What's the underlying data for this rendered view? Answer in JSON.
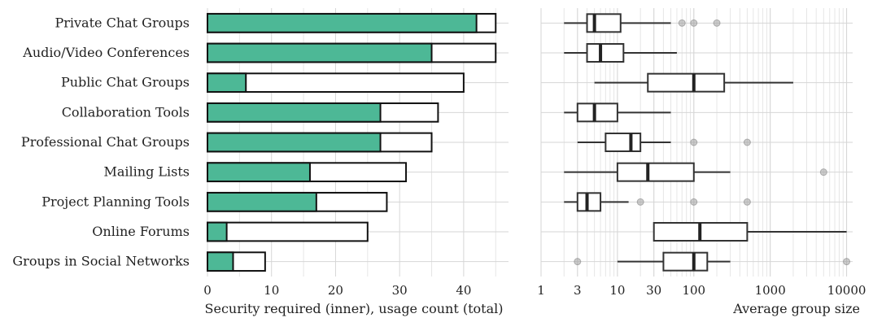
{
  "chart_data": [
    {
      "type": "bar",
      "categories": [
        "Private Chat Groups",
        "Audio/Video Conferences",
        "Public Chat Groups",
        "Collaboration Tools",
        "Professional Chat Groups",
        "Mailing Lists",
        "Project Planning Tools",
        "Online Forums",
        "Groups in Social Networks"
      ],
      "series": [
        {
          "values": [
            42,
            35,
            6,
            27,
            27,
            16,
            17,
            3,
            4
          ],
          "color": "#4db896"
        },
        {
          "values": [
            45,
            45,
            40,
            36,
            35,
            31,
            28,
            25,
            9
          ],
          "color": "#ffffff"
        }
      ],
      "xlabel": "Security required (inner), usage count (total)",
      "xlim": [
        0,
        47
      ],
      "xticks": [
        0,
        10,
        20,
        30,
        40
      ],
      "grid": true
    },
    {
      "type": "box",
      "categories": [
        "Private Chat Groups",
        "Audio/Video Conferences",
        "Public Chat Groups",
        "Collaboration Tools",
        "Professional Chat Groups",
        "Mailing Lists",
        "Project Planning Tools",
        "Online Forums",
        "Groups in Social Networks"
      ],
      "boxes": [
        {
          "whisker_low": 2,
          "q1": 4,
          "median": 5,
          "q3": 11,
          "whisker_high": 50,
          "outliers": [
            70,
            100,
            200
          ]
        },
        {
          "whisker_low": 2,
          "q1": 4,
          "median": 6,
          "q3": 12,
          "whisker_high": 60,
          "outliers": []
        },
        {
          "whisker_low": 5,
          "q1": 25,
          "median": 100,
          "q3": 250,
          "whisker_high": 2000,
          "outliers": []
        },
        {
          "whisker_low": 2,
          "q1": 3,
          "median": 5,
          "q3": 10,
          "whisker_high": 50,
          "outliers": []
        },
        {
          "whisker_low": 3,
          "q1": 7,
          "median": 15,
          "q3": 20,
          "whisker_high": 50,
          "outliers": [
            100,
            500
          ]
        },
        {
          "whisker_low": 2,
          "q1": 10,
          "median": 25,
          "q3": 100,
          "whisker_high": 300,
          "outliers": [
            5000
          ]
        },
        {
          "whisker_low": 2,
          "q1": 3,
          "median": 4,
          "q3": 6,
          "whisker_high": 14,
          "outliers": [
            20,
            100,
            500
          ]
        },
        {
          "whisker_low": 30,
          "q1": 30,
          "median": 120,
          "q3": 500,
          "whisker_high": 10000,
          "outliers": []
        },
        {
          "whisker_low": 10,
          "q1": 40,
          "median": 100,
          "q3": 150,
          "whisker_high": 300,
          "outliers": [
            3,
            10000
          ]
        }
      ],
      "xlabel": "Average group size",
      "xscale": "log",
      "xlim": [
        1,
        12000
      ],
      "xticks": [
        1,
        3,
        10,
        30,
        100,
        1000,
        10000
      ],
      "xtick_labels": [
        "1",
        "3",
        "10",
        "30",
        "100",
        "1000",
        "10000"
      ],
      "grid": true
    }
  ]
}
